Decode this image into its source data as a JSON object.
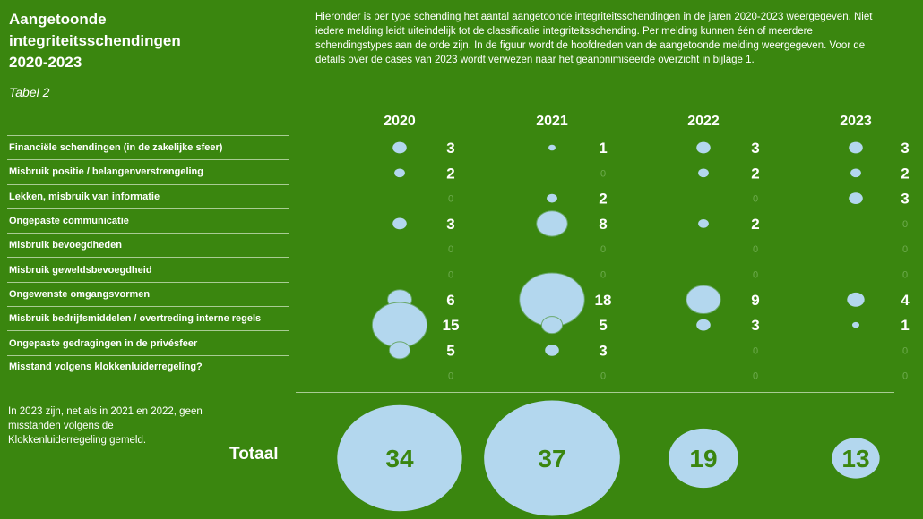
{
  "title_lines": [
    "Aangetoonde",
    "integriteitsschendingen",
    "2020-2023"
  ],
  "subtitle": "Tabel 2",
  "intro": "Hieronder is per type schending het aantal aangetoonde integriteitsschendingen in de jaren 2020-2023 weergegeven. Niet iedere melding leidt uiteindelijk tot de classificatie integriteitsschending. Per melding kunnen één of meerdere schendingstypes aan de orde zijn. In de figuur wordt de hoofdreden van de aangetoonde melding weergegeven. Voor de details over de cases van 2023 wordt verwezen naar het geanonimiseerde overzicht in bijlage 1.",
  "note": "In 2023 zijn, net als in 2021 en 2022, geen misstanden volgens de Klokkenluiderregeling gemeld.",
  "total_label": "Totaal",
  "colors": {
    "background": "#3a860f",
    "bubble": "#b3d7ee",
    "zero": "#6eab4f",
    "text": "#ffffff"
  },
  "chart_data": {
    "type": "bubble-table",
    "years": [
      "2020",
      "2021",
      "2022",
      "2023"
    ],
    "categories": [
      "Financiële schendingen (in de zakelijke sfeer)",
      "Misbruik positie / belangenverstrengeling",
      "Lekken, misbruik van informatie",
      "Ongepaste communicatie",
      "Misbruik bevoegdheden",
      "Misbruik geweldsbevoegdheid",
      "Ongewenste omgangsvormen",
      "Misbruik bedrijfsmiddelen / overtreding interne regels",
      "Ongepaste gedragingen in de privésfeer",
      "Misstand volgens klokkenluiderregeling?"
    ],
    "series": [
      {
        "name": "2020",
        "values": [
          3,
          2,
          0,
          3,
          0,
          0,
          6,
          15,
          5,
          0
        ],
        "total": 34
      },
      {
        "name": "2021",
        "values": [
          1,
          0,
          2,
          8,
          0,
          0,
          18,
          5,
          3,
          0
        ],
        "total": 37
      },
      {
        "name": "2022",
        "values": [
          3,
          2,
          0,
          2,
          0,
          0,
          9,
          3,
          0,
          0
        ],
        "total": 19
      },
      {
        "name": "2023",
        "values": [
          3,
          2,
          3,
          0,
          0,
          0,
          4,
          1,
          0,
          0
        ],
        "total": 13
      }
    ]
  }
}
